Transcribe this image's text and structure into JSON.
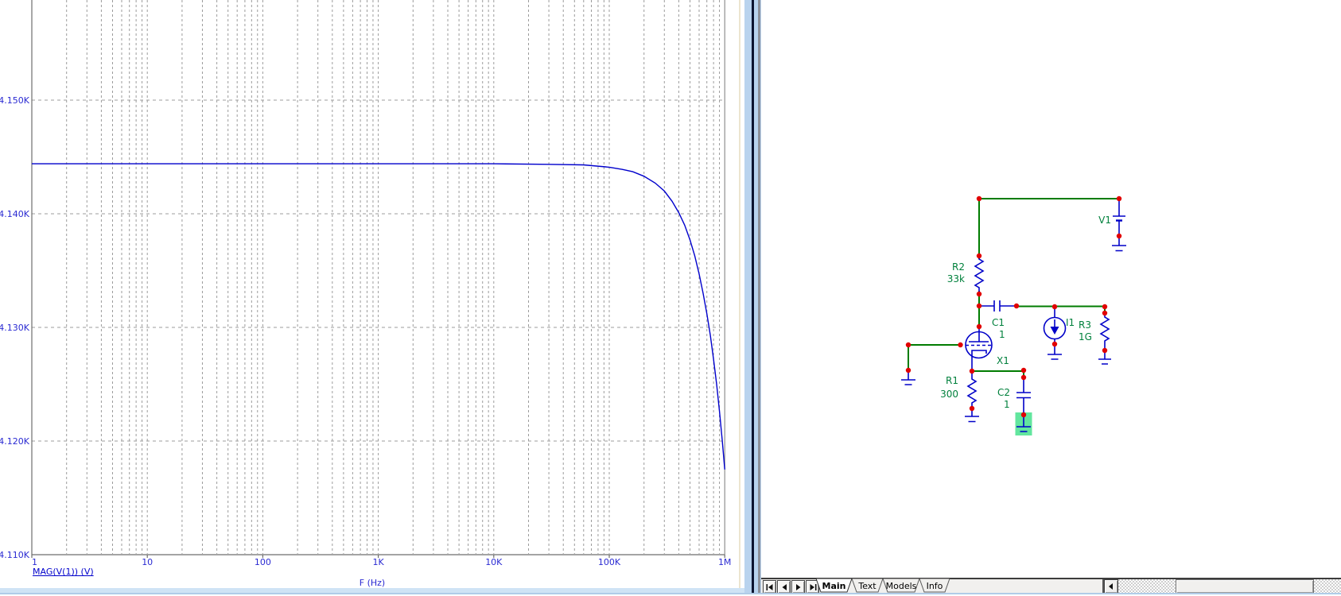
{
  "plot": {
    "trace_label": "MAG(V(1)) (V)",
    "x_title": "F (Hz)",
    "colors": {
      "trace": "#0000cc",
      "labels": "#2a2ad2",
      "grid": "#9c9c9c",
      "axis": "#6e6e6e"
    }
  },
  "chart_data": {
    "type": "line",
    "title": "",
    "xlabel": "F (Hz)",
    "ylabel": "MAG(V(1)) (V)",
    "x_scale": "log",
    "grid": true,
    "xlim": [
      1,
      1000000
    ],
    "ylim_visible": [
      4110,
      4158.8
    ],
    "x_ticks": [
      {
        "f": 1,
        "label": "1"
      },
      {
        "f": 10,
        "label": "10"
      },
      {
        "f": 100,
        "label": "100"
      },
      {
        "f": 1000,
        "label": "1K"
      },
      {
        "f": 10000,
        "label": "10K"
      },
      {
        "f": 100000,
        "label": "100K"
      },
      {
        "f": 1000000,
        "label": "1M"
      }
    ],
    "y_ticks": [
      {
        "v": 4150,
        "label": "4.150K"
      },
      {
        "v": 4140,
        "label": "4.140K"
      },
      {
        "v": 4130,
        "label": "4.130K"
      },
      {
        "v": 4120,
        "label": "4.120K"
      },
      {
        "v": 4110,
        "label": "4.110K"
      }
    ],
    "series": [
      {
        "name": "MAG(V(1)) (V)",
        "color": "#0000cc",
        "points": [
          [
            1,
            4144.4
          ],
          [
            2,
            4144.4
          ],
          [
            5,
            4144.4
          ],
          [
            10,
            4144.4
          ],
          [
            30,
            4144.4
          ],
          [
            100,
            4144.4
          ],
          [
            300,
            4144.4
          ],
          [
            1000,
            4144.4
          ],
          [
            3000,
            4144.4
          ],
          [
            10000,
            4144.4
          ],
          [
            30000,
            4144.35
          ],
          [
            60000,
            4144.3
          ],
          [
            100000,
            4144.1
          ],
          [
            130000,
            4143.9
          ],
          [
            160000,
            4143.7
          ],
          [
            200000,
            4143.3
          ],
          [
            250000,
            4142.7
          ],
          [
            300000,
            4142.0
          ],
          [
            350000,
            4141.1
          ],
          [
            400000,
            4140.1
          ],
          [
            450000,
            4139.0
          ],
          [
            500000,
            4137.7
          ],
          [
            550000,
            4136.3
          ],
          [
            600000,
            4134.7
          ],
          [
            650000,
            4133.0
          ],
          [
            700000,
            4131.2
          ],
          [
            750000,
            4129.3
          ],
          [
            800000,
            4127.2
          ],
          [
            850000,
            4125.0
          ],
          [
            900000,
            4122.6
          ],
          [
            950000,
            4120.1
          ],
          [
            1000000,
            4117.5
          ]
        ]
      }
    ]
  },
  "schematic": {
    "components": {
      "v1": {
        "ref": "V1",
        "type": "battery"
      },
      "r2": {
        "ref": "R2",
        "value": "33k",
        "type": "resistor"
      },
      "c1": {
        "ref": "C1",
        "value": "1",
        "type": "capacitor"
      },
      "x1": {
        "ref": "X1",
        "type": "triode-tube"
      },
      "i1": {
        "ref": "I1",
        "type": "current-source"
      },
      "r3": {
        "ref": "R3",
        "value": "1G",
        "type": "resistor"
      },
      "r1": {
        "ref": "R1",
        "value": "300",
        "type": "resistor"
      },
      "c2": {
        "ref": "C2",
        "value": "1",
        "type": "capacitor"
      }
    },
    "colors": {
      "wire": "#007c00",
      "component": "#0000c8",
      "junction": "#e10000",
      "label": "#00803c",
      "selection_highlight": "#62e69e"
    }
  },
  "sheet_tabs": {
    "tabs": [
      {
        "label": "Main",
        "active": true
      },
      {
        "label": "Text",
        "active": false
      },
      {
        "label": "Models",
        "active": false
      },
      {
        "label": "Info",
        "active": false
      }
    ],
    "nav_buttons": [
      {
        "name": "first"
      },
      {
        "name": "prev"
      },
      {
        "name": "next"
      },
      {
        "name": "last"
      }
    ]
  }
}
